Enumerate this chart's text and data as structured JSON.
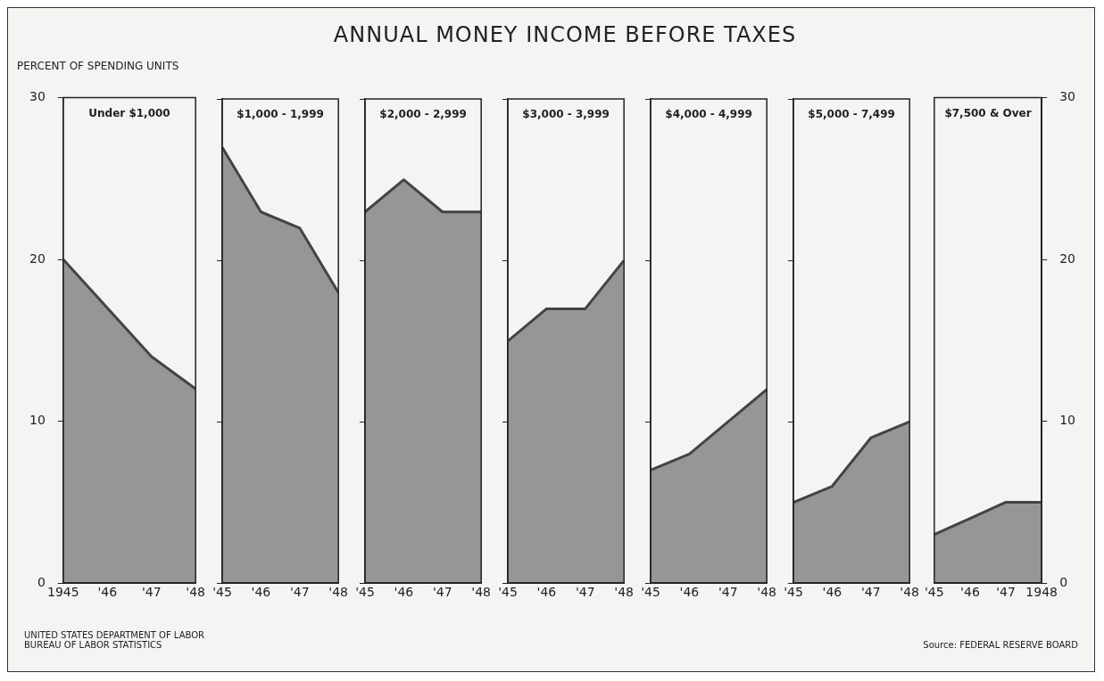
{
  "chart_data": [
    {
      "type": "area",
      "ylabel": "PERCENT OF SPENDING UNITS",
      "subtitle": "Under $1,000",
      "x": [
        1945,
        1946,
        1947,
        1948
      ],
      "xlim": [
        1945,
        1948
      ],
      "xticks": [
        {
          "value": 1945,
          "label": "1945"
        },
        {
          "value": 1946,
          "label": "'46"
        },
        {
          "value": 1947,
          "label": "'47"
        },
        {
          "value": 1948,
          "label": "'48"
        }
      ],
      "ylim": [
        0,
        30
      ],
      "yticks": [
        0,
        10,
        20,
        30
      ],
      "annotations": [
        "UNITED STATES DEPARTMENT OF LABOR\nBUREAU OF LABOR STATISTICS"
      ],
      "series": [
        {
          "color": "#444444",
          "values": [
            20,
            17,
            14,
            12
          ]
        }
      ]
    },
    {
      "type": "area",
      "subtitle": "$1,000 - 1,999",
      "x": [
        1945,
        1946,
        1947,
        1948
      ],
      "xlim": [
        1945,
        1948
      ],
      "xticks": [
        {
          "value": 1945,
          "label": "'45"
        },
        {
          "value": 1946,
          "label": "'46"
        },
        {
          "value": 1947,
          "label": "'47"
        },
        {
          "value": 1948,
          "label": "'48"
        }
      ],
      "ylim": [
        0,
        30
      ],
      "yticks": [
        0,
        10,
        20,
        30
      ],
      "tick_labels": "x",
      "series": [
        {
          "color": "#444444",
          "values": [
            27,
            23,
            22,
            18
          ]
        }
      ]
    },
    {
      "type": "area",
      "subtitle": "$2,000 - 2,999",
      "x": [
        1945,
        1946,
        1947,
        1948
      ],
      "xlim": [
        1945,
        1948
      ],
      "xticks": [
        {
          "value": 1945,
          "label": "'45"
        },
        {
          "value": 1946,
          "label": "'46"
        },
        {
          "value": 1947,
          "label": "'47"
        },
        {
          "value": 1948,
          "label": "'48"
        }
      ],
      "ylim": [
        0,
        30
      ],
      "yticks": [
        0,
        10,
        20,
        30
      ],
      "tick_labels": "x",
      "series": [
        {
          "color": "#444444",
          "values": [
            23,
            25,
            23,
            23
          ]
        }
      ]
    },
    {
      "type": "area",
      "title": "ANNUAL MONEY INCOME BEFORE TAXES",
      "subtitle": "$3,000 - 3,999",
      "x": [
        1945,
        1946,
        1947,
        1948
      ],
      "xlim": [
        1945,
        1948
      ],
      "xticks": [
        {
          "value": 1945,
          "label": "'45"
        },
        {
          "value": 1946,
          "label": "'46"
        },
        {
          "value": 1947,
          "label": "'47"
        },
        {
          "value": 1948,
          "label": "'48"
        }
      ],
      "ylim": [
        0,
        30
      ],
      "yticks": [
        0,
        10,
        20,
        30
      ],
      "tick_labels": "x",
      "series": [
        {
          "color": "#444444",
          "values": [
            15,
            17,
            17,
            20
          ]
        }
      ]
    },
    {
      "type": "area",
      "subtitle": "$4,000 - 4,999",
      "x": [
        1945,
        1946,
        1947,
        1948
      ],
      "xlim": [
        1945,
        1948
      ],
      "xticks": [
        {
          "value": 1945,
          "label": "'45"
        },
        {
          "value": 1946,
          "label": "'46"
        },
        {
          "value": 1947,
          "label": "'47"
        },
        {
          "value": 1948,
          "label": "'48"
        }
      ],
      "ylim": [
        0,
        30
      ],
      "yticks": [
        0,
        10,
        20,
        30
      ],
      "tick_labels": "x",
      "series": [
        {
          "color": "#444444",
          "values": [
            7,
            8,
            10,
            12
          ]
        }
      ]
    },
    {
      "type": "area",
      "subtitle": "$5,000 - 7,499",
      "x": [
        1945,
        1946,
        1947,
        1948
      ],
      "xlim": [
        1945,
        1948
      ],
      "xticks": [
        {
          "value": 1945,
          "label": "'45"
        },
        {
          "value": 1946,
          "label": "'46"
        },
        {
          "value": 1947,
          "label": "'47"
        },
        {
          "value": 1948,
          "label": "'48"
        }
      ],
      "ylim": [
        0,
        30
      ],
      "yticks": [
        0,
        10,
        20,
        30
      ],
      "tick_labels": "x",
      "series": [
        {
          "color": "#444444",
          "values": [
            5,
            6,
            9,
            10
          ]
        }
      ]
    },
    {
      "type": "area",
      "subtitle": "$7,500 & Over",
      "x": [
        1945,
        1946,
        1947,
        1948
      ],
      "xlim": [
        1945,
        1948
      ],
      "xticks": [
        {
          "value": 1945,
          "label": "'45"
        },
        {
          "value": 1946,
          "label": "'46"
        },
        {
          "value": 1947,
          "label": "'47"
        },
        {
          "value": 1948,
          "label": "1948"
        }
      ],
      "y2lim": [
        0,
        30
      ],
      "y2ticks": [
        0,
        10,
        20,
        30
      ],
      "annotations": [
        "Source: FEDERAL RESERVE BOARD"
      ],
      "series": [
        {
          "color": "#444444",
          "values": [
            3,
            4,
            5,
            5
          ],
          "axis": "y2"
        }
      ]
    }
  ]
}
